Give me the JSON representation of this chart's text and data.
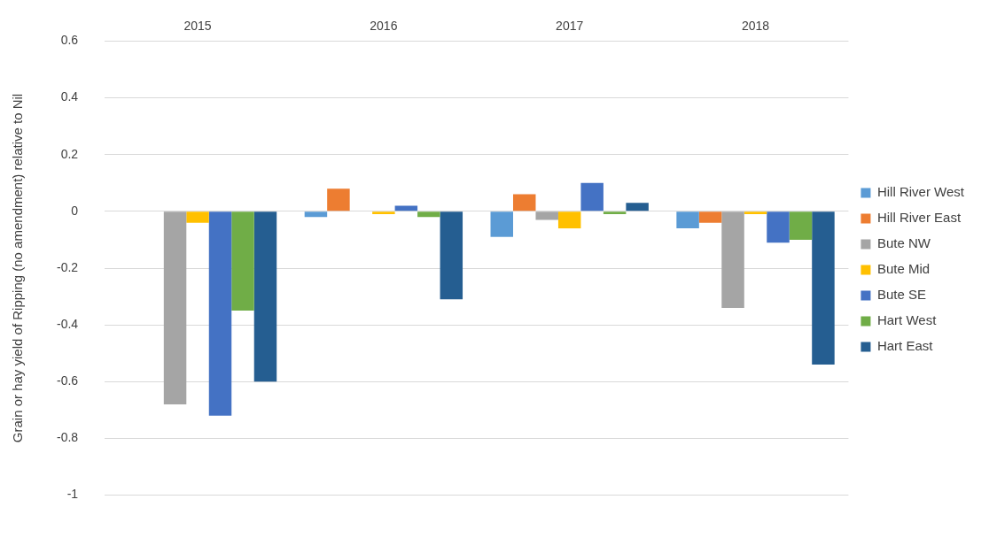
{
  "chart_data": {
    "type": "bar",
    "ylabel": "Grain or hay yield of Ripping (no amendment) relative to Nil",
    "categories": [
      "2015",
      "2016",
      "2017",
      "2018"
    ],
    "series": [
      {
        "name": "Hill River West",
        "color": "#5b9bd5",
        "values": [
          null,
          -0.02,
          -0.09,
          -0.06
        ]
      },
      {
        "name": "Hill River East",
        "color": "#ed7d31",
        "values": [
          null,
          0.08,
          0.06,
          -0.04
        ]
      },
      {
        "name": "Bute NW",
        "color": "#a5a5a5",
        "values": [
          -0.68,
          null,
          -0.03,
          -0.34
        ]
      },
      {
        "name": "Bute Mid",
        "color": "#ffc000",
        "values": [
          -0.04,
          -0.01,
          -0.06,
          -0.01
        ]
      },
      {
        "name": "Bute SE",
        "color": "#4472c4",
        "values": [
          -0.72,
          0.02,
          0.1,
          -0.11
        ]
      },
      {
        "name": "Hart West",
        "color": "#70ad47",
        "values": [
          -0.35,
          -0.02,
          -0.01,
          -0.1
        ]
      },
      {
        "name": "Hart East",
        "color": "#255e91",
        "values": [
          -0.6,
          -0.31,
          0.03,
          -0.54
        ]
      }
    ],
    "ylim": [
      -1,
      0.6
    ],
    "yticks": [
      -1,
      -0.8,
      -0.6,
      -0.4,
      -0.2,
      0,
      0.2,
      0.4,
      0.6
    ],
    "grid": "y",
    "legend": "right"
  }
}
